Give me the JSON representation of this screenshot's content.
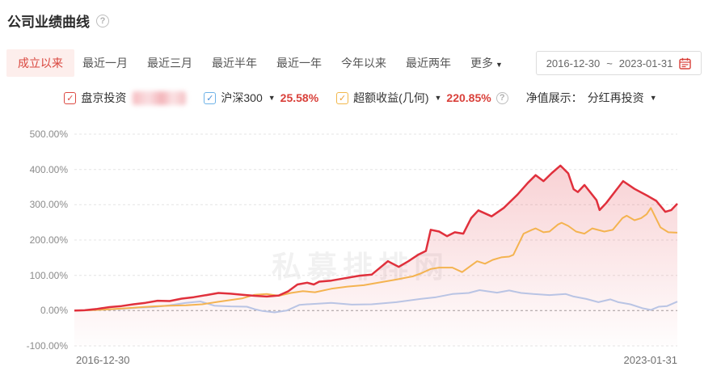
{
  "page": {
    "title": "公司业绩曲线",
    "help_icon": "?"
  },
  "tabs": {
    "items": [
      {
        "label": "成立以来",
        "active": true
      },
      {
        "label": "最近一月",
        "active": false
      },
      {
        "label": "最近三月",
        "active": false
      },
      {
        "label": "最近半年",
        "active": false
      },
      {
        "label": "最近一年",
        "active": false
      },
      {
        "label": "今年以来",
        "active": false
      },
      {
        "label": "最近两年",
        "active": false
      }
    ],
    "more": {
      "label": "更多",
      "caret": "▼"
    },
    "date_range": {
      "start": "2016-12-30",
      "separator": "~",
      "end": "2023-01-31",
      "calendar_icon": "calendar-icon"
    }
  },
  "legend": {
    "series": [
      {
        "label": "盘京投资",
        "checkbox_color": "#dc4a43",
        "check": "✓",
        "value_redacted": true
      },
      {
        "label": "沪深300",
        "checkbox_color": "#6fb3e8",
        "check": "✓",
        "caret": "▼",
        "value": "25.58%",
        "value_color": "#d9403a"
      },
      {
        "label": "超额收益(几何)",
        "checkbox_color": "#f2b84c",
        "check": "✓",
        "caret": "▼",
        "value": "220.85%",
        "value_color": "#d9403a"
      }
    ],
    "help_icon": "?",
    "display_mode": {
      "label": "净值展示：",
      "value": "分红再投资",
      "caret": "▼"
    }
  },
  "chart_data": {
    "type": "line",
    "title": "公司业绩曲线",
    "watermark": "私募排排网",
    "grid": "dashed-horizontal",
    "legend_position": "top",
    "x_axis": {
      "start_label": "2016-12-30",
      "end_label": "2023-01-31",
      "x_format": "fraction_of_date_range"
    },
    "y_axis": {
      "min": -100,
      "max": 500,
      "unit": "%",
      "ticks": [
        {
          "label": "500.00%",
          "value": 500
        },
        {
          "label": "400.00%",
          "value": 400
        },
        {
          "label": "300.00%",
          "value": 300
        },
        {
          "label": "200.00%",
          "value": 200
        },
        {
          "label": "100.00%",
          "value": 100
        },
        {
          "label": "0.00%",
          "value": 0
        },
        {
          "label": "-100.00%",
          "value": -100
        }
      ]
    },
    "series": [
      {
        "name": "盘京投资",
        "color": "#e0303c",
        "area_fill": true,
        "final_value_display": "redacted",
        "points": [
          [
            0,
            0
          ],
          [
            0.017,
            1
          ],
          [
            0.038,
            5
          ],
          [
            0.058,
            10
          ],
          [
            0.078,
            13
          ],
          [
            0.098,
            18
          ],
          [
            0.118,
            22
          ],
          [
            0.138,
            28
          ],
          [
            0.158,
            27
          ],
          [
            0.178,
            34
          ],
          [
            0.198,
            38
          ],
          [
            0.219,
            44
          ],
          [
            0.239,
            50
          ],
          [
            0.259,
            48
          ],
          [
            0.279,
            45
          ],
          [
            0.299,
            42
          ],
          [
            0.319,
            40
          ],
          [
            0.339,
            43
          ],
          [
            0.355,
            55
          ],
          [
            0.37,
            74
          ],
          [
            0.386,
            79
          ],
          [
            0.397,
            74
          ],
          [
            0.406,
            82
          ],
          [
            0.426,
            85
          ],
          [
            0.449,
            92
          ],
          [
            0.473,
            99
          ],
          [
            0.493,
            102
          ],
          [
            0.52,
            140
          ],
          [
            0.538,
            124
          ],
          [
            0.554,
            140
          ],
          [
            0.57,
            158
          ],
          [
            0.583,
            169
          ],
          [
            0.591,
            229
          ],
          [
            0.605,
            224
          ],
          [
            0.618,
            211
          ],
          [
            0.631,
            222
          ],
          [
            0.645,
            218
          ],
          [
            0.658,
            262
          ],
          [
            0.67,
            284
          ],
          [
            0.692,
            267
          ],
          [
            0.712,
            291
          ],
          [
            0.735,
            329
          ],
          [
            0.752,
            362
          ],
          [
            0.765,
            384
          ],
          [
            0.778,
            367
          ],
          [
            0.792,
            390
          ],
          [
            0.806,
            411
          ],
          [
            0.819,
            389
          ],
          [
            0.828,
            344
          ],
          [
            0.835,
            336
          ],
          [
            0.846,
            356
          ],
          [
            0.866,
            313
          ],
          [
            0.871,
            285
          ],
          [
            0.882,
            305
          ],
          [
            0.91,
            367
          ],
          [
            0.929,
            345
          ],
          [
            0.952,
            324
          ],
          [
            0.965,
            311
          ],
          [
            0.98,
            280
          ],
          [
            0.99,
            285
          ],
          [
            1,
            303
          ]
        ]
      },
      {
        "name": "沪深300",
        "color": "#b9c4e4",
        "area_fill": false,
        "final_value": "25.58%",
        "points": [
          [
            0,
            0
          ],
          [
            0.025,
            1
          ],
          [
            0.051,
            3
          ],
          [
            0.078,
            5
          ],
          [
            0.105,
            8
          ],
          [
            0.131,
            10
          ],
          [
            0.158,
            15
          ],
          [
            0.185,
            22
          ],
          [
            0.209,
            26
          ],
          [
            0.232,
            14
          ],
          [
            0.259,
            12
          ],
          [
            0.286,
            11
          ],
          [
            0.299,
            4
          ],
          [
            0.312,
            -1
          ],
          [
            0.332,
            -5
          ],
          [
            0.352,
            0
          ],
          [
            0.373,
            16
          ],
          [
            0.386,
            18
          ],
          [
            0.426,
            22
          ],
          [
            0.46,
            17
          ],
          [
            0.493,
            18
          ],
          [
            0.534,
            24
          ],
          [
            0.574,
            33
          ],
          [
            0.6,
            38
          ],
          [
            0.627,
            47
          ],
          [
            0.654,
            50
          ],
          [
            0.672,
            58
          ],
          [
            0.701,
            51
          ],
          [
            0.721,
            57
          ],
          [
            0.741,
            50
          ],
          [
            0.761,
            47
          ],
          [
            0.788,
            44
          ],
          [
            0.815,
            47
          ],
          [
            0.828,
            40
          ],
          [
            0.849,
            33
          ],
          [
            0.869,
            24
          ],
          [
            0.889,
            32
          ],
          [
            0.902,
            24
          ],
          [
            0.922,
            18
          ],
          [
            0.942,
            7
          ],
          [
            0.956,
            2
          ],
          [
            0.969,
            11
          ],
          [
            0.983,
            13
          ],
          [
            1,
            25.58
          ]
        ]
      },
      {
        "name": "超额收益(几何)",
        "color": "#f4b350",
        "area_fill": false,
        "final_value": "220.85%",
        "points": [
          [
            0,
            0
          ],
          [
            0.025,
            1
          ],
          [
            0.051,
            3
          ],
          [
            0.078,
            6
          ],
          [
            0.105,
            9
          ],
          [
            0.131,
            12
          ],
          [
            0.158,
            14
          ],
          [
            0.185,
            15
          ],
          [
            0.212,
            18
          ],
          [
            0.239,
            25
          ],
          [
            0.259,
            30
          ],
          [
            0.279,
            35
          ],
          [
            0.299,
            45
          ],
          [
            0.319,
            47
          ],
          [
            0.339,
            42
          ],
          [
            0.359,
            50
          ],
          [
            0.379,
            55
          ],
          [
            0.399,
            52
          ],
          [
            0.426,
            62
          ],
          [
            0.453,
            68
          ],
          [
            0.48,
            72
          ],
          [
            0.507,
            80
          ],
          [
            0.534,
            88
          ],
          [
            0.561,
            97
          ],
          [
            0.574,
            105
          ],
          [
            0.591,
            118
          ],
          [
            0.605,
            122
          ],
          [
            0.627,
            122
          ],
          [
            0.643,
            109
          ],
          [
            0.668,
            140
          ],
          [
            0.681,
            133
          ],
          [
            0.694,
            144
          ],
          [
            0.708,
            151
          ],
          [
            0.721,
            153
          ],
          [
            0.728,
            158
          ],
          [
            0.745,
            218
          ],
          [
            0.759,
            229
          ],
          [
            0.765,
            233
          ],
          [
            0.778,
            222
          ],
          [
            0.788,
            224
          ],
          [
            0.802,
            244
          ],
          [
            0.808,
            249
          ],
          [
            0.819,
            240
          ],
          [
            0.832,
            224
          ],
          [
            0.846,
            218
          ],
          [
            0.859,
            233
          ],
          [
            0.879,
            224
          ],
          [
            0.893,
            229
          ],
          [
            0.909,
            262
          ],
          [
            0.916,
            269
          ],
          [
            0.929,
            256
          ],
          [
            0.94,
            262
          ],
          [
            0.949,
            273
          ],
          [
            0.956,
            291
          ],
          [
            0.972,
            236
          ],
          [
            0.985,
            222
          ],
          [
            1,
            220.85
          ]
        ]
      }
    ]
  }
}
